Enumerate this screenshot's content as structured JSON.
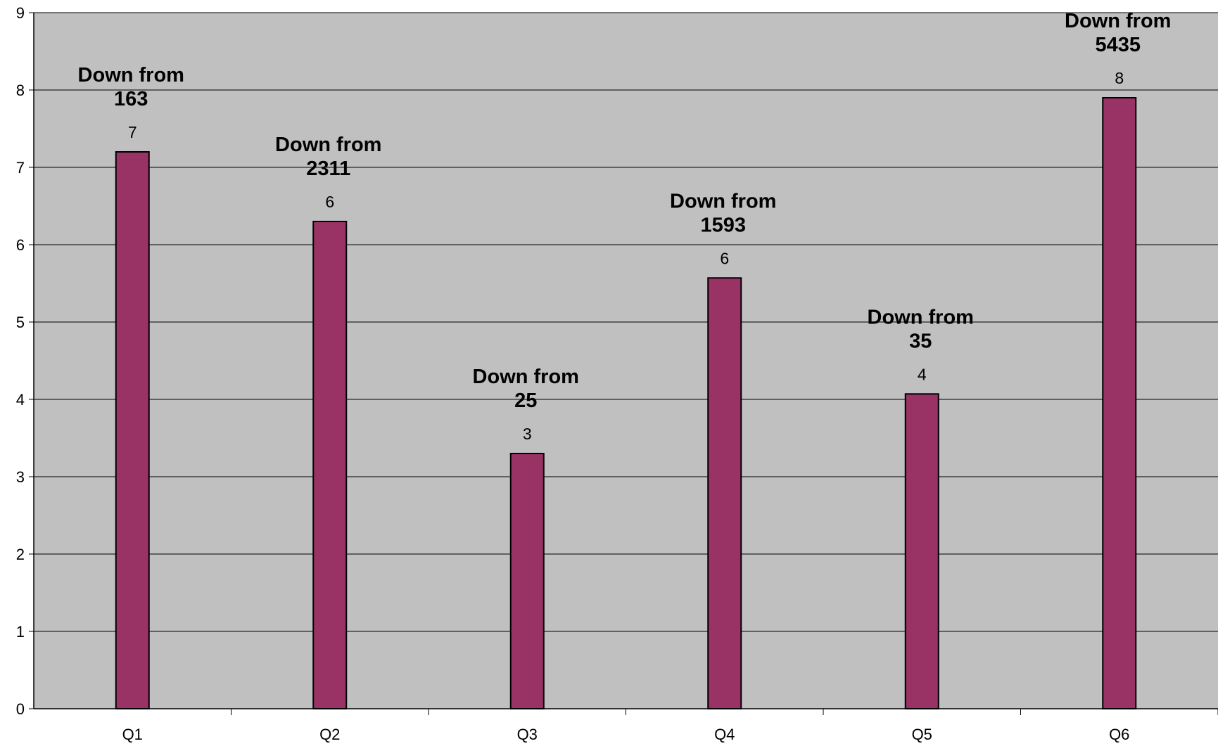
{
  "chart_data": {
    "type": "bar",
    "title": "",
    "xlabel": "",
    "ylabel": "",
    "categories": [
      "Q1",
      "Q2",
      "Q3",
      "Q4",
      "Q5",
      "Q6"
    ],
    "values": [
      7.2,
      6.3,
      3.3,
      5.57,
      4.07,
      7.9
    ],
    "data_labels": [
      "7",
      "6",
      "3",
      "6",
      "4",
      "8"
    ],
    "annotations": [
      {
        "category": "Q1",
        "line1": "Down from",
        "line2": "163"
      },
      {
        "category": "Q2",
        "line1": "Down from",
        "line2": "2311"
      },
      {
        "category": "Q3",
        "line1": "Down from",
        "line2": "25"
      },
      {
        "category": "Q4",
        "line1": "Down from",
        "line2": "1593"
      },
      {
        "category": "Q5",
        "line1": "Down from",
        "line2": "35"
      },
      {
        "category": "Q6",
        "line1": "Down from",
        "line2": "5435"
      }
    ],
    "ylim": [
      0,
      9
    ],
    "yticks": [
      "0",
      "1",
      "2",
      "3",
      "4",
      "5",
      "6",
      "7",
      "8",
      "9"
    ],
    "grid": true,
    "legend": "none",
    "colors": {
      "bar": "#993366",
      "plot_background": "#c0c0c0",
      "gridline": "#000000",
      "page_background": "#ffffff"
    }
  }
}
